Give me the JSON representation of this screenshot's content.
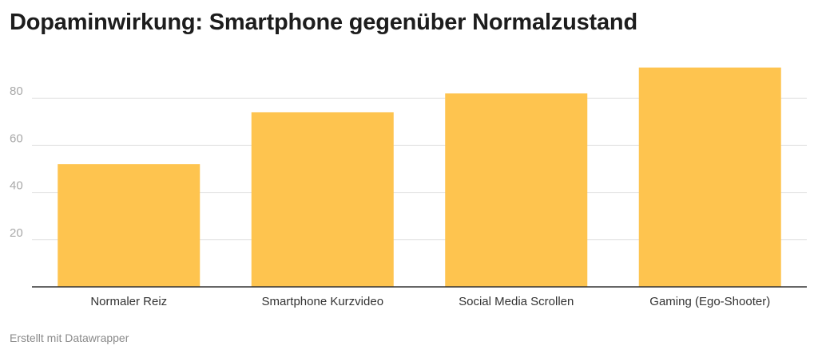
{
  "header": {
    "title": "Dopaminwirkung: Smartphone gegenüber Normalzustand"
  },
  "footer": {
    "credit": "Erstellt mit Datawrapper"
  },
  "colors": {
    "bar": "#fec44f",
    "grid": "#e2e2e2",
    "axis": "#333333"
  },
  "chart_data": {
    "type": "bar",
    "categories": [
      "Normaler Reiz",
      "Smartphone Kurzvideo",
      "Social Media Scrollen",
      "Gaming (Ego-Shooter)"
    ],
    "values": [
      52,
      74,
      82,
      93
    ],
    "title": "Dopaminwirkung: Smartphone gegenüber Normalzustand",
    "xlabel": "",
    "ylabel": "",
    "ylim": [
      0,
      100
    ],
    "yticks": [
      20,
      40,
      60,
      80
    ],
    "grid": true,
    "legend": "none"
  }
}
